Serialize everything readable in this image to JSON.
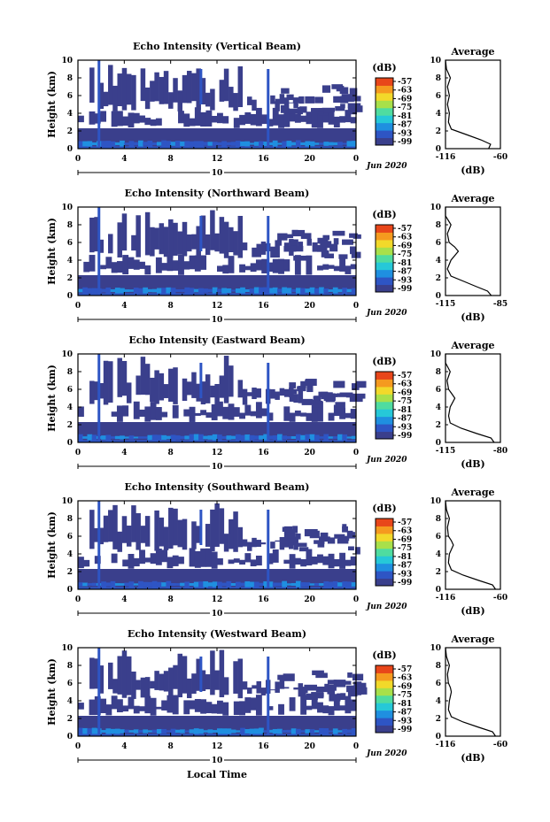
{
  "colors": {
    "background_echo": "#3a3f8c",
    "colorbar": [
      "#3a3f8c",
      "#2e55c4",
      "#1f8fe0",
      "#26c8d8",
      "#4fdca0",
      "#a8e04a",
      "#f2d92a",
      "#f59a1f",
      "#e8461a"
    ]
  },
  "common": {
    "xlabel": "Local Time",
    "ylabel": "Height (km)",
    "date_label": "Jun 2020",
    "day_marker": "10",
    "cbar_unit": "(dB)",
    "avg_title": "Average",
    "avg_xlabel": "(dB)"
  },
  "chart_data": [
    {
      "type": "heatmap",
      "title": "Echo Intensity (Vertical Beam)",
      "x_ticks": [
        "0",
        "4",
        "8",
        "12",
        "16",
        "20",
        "0"
      ],
      "y_ticks": [
        "0",
        "2",
        "4",
        "6",
        "8",
        "10"
      ],
      "xlim": [
        0,
        24
      ],
      "ylim": [
        0,
        10
      ],
      "colorbar_ticks": [
        "-57",
        "-63",
        "-69",
        "-75",
        "-81",
        "-87",
        "-93",
        "-99"
      ],
      "average": {
        "x_ticks": [
          "-116",
          "-60"
        ],
        "profile": [
          [
            -72,
            0
          ],
          [
            -70,
            0.5
          ],
          [
            -80,
            1
          ],
          [
            -95,
            1.6
          ],
          [
            -110,
            2.2
          ],
          [
            -113,
            3
          ],
          [
            -112,
            4
          ],
          [
            -114,
            5
          ],
          [
            -112,
            6
          ],
          [
            -114,
            7
          ],
          [
            -111,
            8
          ],
          [
            -115,
            9
          ],
          [
            -116,
            10
          ]
        ]
      }
    },
    {
      "type": "heatmap",
      "title": "Echo Intensity (Northward Beam)",
      "x_ticks": [
        "0",
        "4",
        "8",
        "12",
        "16",
        "20",
        "0"
      ],
      "y_ticks": [
        "0",
        "2",
        "4",
        "6",
        "8",
        "10"
      ],
      "xlim": [
        0,
        24
      ],
      "ylim": [
        0,
        10
      ],
      "colorbar_ticks": [
        "-57",
        "-63",
        "-69",
        "-75",
        "-81",
        "-87",
        "-93",
        "-99"
      ],
      "average": {
        "x_ticks": [
          "-115",
          "-85"
        ],
        "profile": [
          [
            -90,
            0
          ],
          [
            -92,
            0.5
          ],
          [
            -98,
            1
          ],
          [
            -105,
            1.6
          ],
          [
            -112,
            2.2
          ],
          [
            -114,
            3
          ],
          [
            -112,
            4
          ],
          [
            -108,
            5
          ],
          [
            -110,
            5.5
          ],
          [
            -113,
            6
          ],
          [
            -114,
            7
          ],
          [
            -112,
            8
          ],
          [
            -115,
            9
          ],
          [
            -115,
            10
          ]
        ]
      }
    },
    {
      "type": "heatmap",
      "title": "Echo Intensity (Eastward Beam)",
      "x_ticks": [
        "0",
        "4",
        "8",
        "12",
        "16",
        "20",
        "0"
      ],
      "y_ticks": [
        "0",
        "2",
        "4",
        "6",
        "8",
        "10"
      ],
      "xlim": [
        0,
        24
      ],
      "ylim": [
        0,
        10
      ],
      "colorbar_ticks": [
        "-57",
        "-63",
        "-69",
        "-75",
        "-81",
        "-87",
        "-93",
        "-99"
      ],
      "average": {
        "x_ticks": [
          "-115",
          "-80"
        ],
        "profile": [
          [
            -84,
            0
          ],
          [
            -86,
            0.5
          ],
          [
            -95,
            1
          ],
          [
            -105,
            1.6
          ],
          [
            -112,
            2.2
          ],
          [
            -113,
            3
          ],
          [
            -112,
            4
          ],
          [
            -109,
            5
          ],
          [
            -111,
            5.5
          ],
          [
            -113,
            6
          ],
          [
            -114,
            7
          ],
          [
            -112,
            8
          ],
          [
            -115,
            9
          ],
          [
            -115,
            10
          ]
        ]
      }
    },
    {
      "type": "heatmap",
      "title": "Echo Intensity (Southward Beam)",
      "x_ticks": [
        "0",
        "4",
        "8",
        "12",
        "16",
        "20",
        "0"
      ],
      "y_ticks": [
        "0",
        "2",
        "4",
        "6",
        "8",
        "10"
      ],
      "xlim": [
        0,
        24
      ],
      "ylim": [
        0,
        10
      ],
      "colorbar_ticks": [
        "-57",
        "-63",
        "-69",
        "-75",
        "-81",
        "-87",
        "-93",
        "-99"
      ],
      "average": {
        "x_ticks": [
          "-116",
          "-60"
        ],
        "profile": [
          [
            -65,
            0
          ],
          [
            -68,
            0.5
          ],
          [
            -82,
            1
          ],
          [
            -98,
            1.6
          ],
          [
            -110,
            2.2
          ],
          [
            -113,
            3
          ],
          [
            -112,
            4
          ],
          [
            -108,
            5
          ],
          [
            -110,
            5.5
          ],
          [
            -113,
            6
          ],
          [
            -114,
            7
          ],
          [
            -112,
            8
          ],
          [
            -115,
            9
          ],
          [
            -116,
            10
          ]
        ]
      }
    },
    {
      "type": "heatmap",
      "title": "Echo Intensity (Westward Beam)",
      "x_ticks": [
        "0",
        "4",
        "8",
        "12",
        "16",
        "20",
        "0"
      ],
      "y_ticks": [
        "0",
        "2",
        "4",
        "6",
        "8",
        "10"
      ],
      "xlim": [
        0,
        24
      ],
      "ylim": [
        0,
        10
      ],
      "colorbar_ticks": [
        "-57",
        "-63",
        "-69",
        "-75",
        "-81",
        "-87",
        "-93",
        "-99"
      ],
      "average": {
        "x_ticks": [
          "-116",
          "-60"
        ],
        "profile": [
          [
            -65,
            0
          ],
          [
            -68,
            0.5
          ],
          [
            -82,
            1
          ],
          [
            -98,
            1.6
          ],
          [
            -110,
            2.2
          ],
          [
            -113,
            3
          ],
          [
            -112,
            4
          ],
          [
            -110,
            5
          ],
          [
            -111,
            5.5
          ],
          [
            -113,
            6
          ],
          [
            -114,
            7
          ],
          [
            -112,
            8
          ],
          [
            -115,
            9
          ],
          [
            -116,
            10
          ]
        ]
      }
    }
  ]
}
